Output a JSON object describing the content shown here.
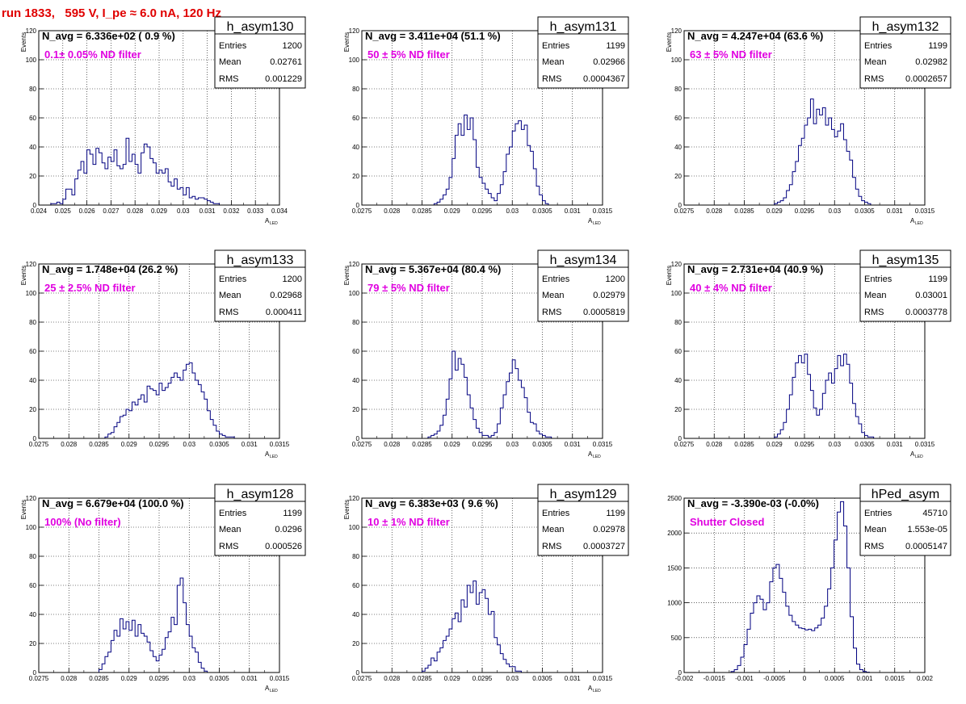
{
  "page": {
    "title": "run 1833,   595 V, I_pe ≈ 6.0 nA, 120 Hz"
  },
  "colors": {
    "title": "#e00000",
    "histogram_line": "#000080",
    "note": "#e000e0",
    "grid": "#000000",
    "frame": "#000000"
  },
  "chart_data": [
    {
      "type": "histogram",
      "name": "h_asym130",
      "ylabel": "Events",
      "xlabel_main": "A",
      "xlabel_sub": "LED",
      "xlim": [
        0.024,
        0.034
      ],
      "ylim": [
        0,
        120
      ],
      "xticks": [
        "0.024",
        "0.025",
        "0.026",
        "0.027",
        "0.028",
        "0.029",
        "0.03",
        "0.031",
        "0.032",
        "0.033",
        "0.034"
      ],
      "yticks": [
        "0",
        "20",
        "40",
        "60",
        "80",
        "100",
        "120"
      ],
      "grid": true,
      "navg": "N_avg = 6.336e+02 ( 0.9 %)",
      "note": "0.1± 0.05% ND filter",
      "stats": {
        "entries": "1200",
        "mean": "0.02761",
        "rms": "0.001229"
      },
      "bin_edges": [
        0.0245,
        0.033
      ],
      "counts": [
        1,
        1,
        2,
        1,
        4,
        11,
        11,
        7,
        18,
        24,
        30,
        22,
        38,
        35,
        28,
        39,
        36,
        29,
        25,
        33,
        30,
        38,
        27,
        25,
        28,
        46,
        30,
        35,
        28,
        22,
        36,
        42,
        40,
        32,
        29,
        22,
        24,
        22,
        25,
        16,
        13,
        18,
        11,
        12,
        7,
        12,
        5,
        6,
        4,
        5,
        5,
        4,
        3,
        2,
        1,
        1,
        0,
        0,
        0,
        0,
        0,
        0,
        0,
        0,
        0,
        0,
        0,
        0
      ]
    },
    {
      "type": "histogram",
      "name": "h_asym131",
      "ylabel": "Events",
      "xlabel_main": "A",
      "xlabel_sub": "LED",
      "xlim": [
        0.0275,
        0.0315
      ],
      "ylim": [
        0,
        120
      ],
      "xticks": [
        "0.0275",
        "0.028",
        "0.0285",
        "0.029",
        "0.0295",
        "0.03",
        "0.0305",
        "0.031",
        "0.0315"
      ],
      "yticks": [
        "0",
        "20",
        "40",
        "60",
        "80",
        "100",
        "120"
      ],
      "grid": true,
      "navg": "N_avg = 3.411e+04 (51.1 %)",
      "note": "50 ± 5% ND filter",
      "stats": {
        "entries": "1199",
        "mean": "0.02966",
        "rms": "0.0004367"
      },
      "bin_edges": [
        0.0287,
        0.0306
      ],
      "counts": [
        1,
        2,
        4,
        7,
        11,
        19,
        32,
        48,
        56,
        48,
        62,
        52,
        60,
        45,
        26,
        19,
        15,
        11,
        8,
        5,
        3,
        8,
        14,
        23,
        35,
        40,
        51,
        56,
        58,
        52,
        55,
        41,
        37,
        25,
        13,
        7,
        3,
        1
      ]
    },
    {
      "type": "histogram",
      "name": "h_asym132",
      "ylabel": "Events",
      "xlabel_main": "A",
      "xlabel_sub": "LED",
      "xlim": [
        0.0275,
        0.0315
      ],
      "ylim": [
        0,
        120
      ],
      "xticks": [
        "0.0275",
        "0.028",
        "0.0285",
        "0.029",
        "0.0295",
        "0.03",
        "0.0305",
        "0.031",
        "0.0315"
      ],
      "yticks": [
        "0",
        "20",
        "40",
        "60",
        "80",
        "100",
        "120"
      ],
      "grid": true,
      "navg": "N_avg = 4.247e+04 (63.6 %)",
      "note": "63 ± 5% ND filter",
      "stats": {
        "entries": "1199",
        "mean": "0.02982",
        "rms": "0.0002657"
      },
      "bin_edges": [
        0.029,
        0.0306
      ],
      "counts": [
        1,
        2,
        3,
        5,
        10,
        14,
        23,
        30,
        41,
        46,
        55,
        60,
        73,
        56,
        66,
        62,
        67,
        55,
        60,
        52,
        47,
        51,
        56,
        45,
        37,
        31,
        19,
        11,
        6,
        3,
        2,
        1
      ]
    },
    {
      "type": "histogram",
      "name": "h_asym133",
      "ylabel": "Events",
      "xlabel_main": "A",
      "xlabel_sub": "LED",
      "xlim": [
        0.0275,
        0.0315
      ],
      "ylim": [
        0,
        120
      ],
      "xticks": [
        "0.0275",
        "0.028",
        "0.0285",
        "0.029",
        "0.0295",
        "0.03",
        "0.0305",
        "0.031",
        "0.0315"
      ],
      "yticks": [
        "0",
        "20",
        "40",
        "60",
        "80",
        "100",
        "120"
      ],
      "grid": true,
      "navg": "N_avg = 1.748e+04 (26.2 %)",
      "note": "25 ± 2.5% ND filter",
      "stats": {
        "entries": "1200",
        "mean": "0.02968",
        "rms": "0.000411"
      },
      "bin_edges": [
        0.0286,
        0.031
      ],
      "counts": [
        1,
        3,
        4,
        8,
        11,
        15,
        16,
        20,
        19,
        25,
        23,
        27,
        30,
        25,
        36,
        34,
        33,
        30,
        38,
        33,
        35,
        38,
        42,
        45,
        42,
        40,
        47,
        51,
        52,
        45,
        40,
        37,
        32,
        27,
        19,
        13,
        9,
        5,
        3,
        2,
        1,
        1,
        1,
        0,
        0,
        0,
        0,
        0
      ]
    },
    {
      "type": "histogram",
      "name": "h_asym134",
      "ylabel": "Events",
      "xlabel_main": "A",
      "xlabel_sub": "LED",
      "xlim": [
        0.0275,
        0.0315
      ],
      "ylim": [
        0,
        120
      ],
      "xticks": [
        "0.0275",
        "0.028",
        "0.0285",
        "0.029",
        "0.0295",
        "0.03",
        "0.0305",
        "0.031",
        "0.0315"
      ],
      "yticks": [
        "0",
        "20",
        "40",
        "60",
        "80",
        "100",
        "120"
      ],
      "grid": true,
      "navg": "N_avg = 5.367e+04 (80.4 %)",
      "note": "79 ± 5% ND filter",
      "stats": {
        "entries": "1200",
        "mean": "0.02979",
        "rms": "0.0005819"
      },
      "bin_edges": [
        0.0286,
        0.031
      ],
      "counts": [
        1,
        2,
        3,
        5,
        9,
        16,
        27,
        41,
        60,
        47,
        55,
        51,
        42,
        30,
        21,
        13,
        7,
        4,
        2,
        2,
        1,
        2,
        4,
        10,
        21,
        30,
        39,
        45,
        54,
        48,
        40,
        35,
        28,
        18,
        11,
        10,
        5,
        3,
        2,
        1,
        1,
        0,
        0,
        0,
        0,
        0,
        0,
        0
      ]
    },
    {
      "type": "histogram",
      "name": "h_asym135",
      "ylabel": "Events",
      "xlabel_main": "A",
      "xlabel_sub": "LED",
      "xlim": [
        0.0275,
        0.0315
      ],
      "ylim": [
        0,
        120
      ],
      "xticks": [
        "0.0275",
        "0.028",
        "0.0285",
        "0.029",
        "0.0295",
        "0.03",
        "0.0305",
        "0.031",
        "0.0315"
      ],
      "yticks": [
        "0",
        "20",
        "40",
        "60",
        "80",
        "100",
        "120"
      ],
      "grid": true,
      "navg": "N_avg = 2.731e+04 (40.9 %)",
      "note": "40 ± 4% ND filter",
      "stats": {
        "entries": "1199",
        "mean": "0.03001",
        "rms": "0.0003778"
      },
      "bin_edges": [
        0.029,
        0.031
      ],
      "counts": [
        1,
        3,
        6,
        11,
        20,
        30,
        42,
        52,
        57,
        52,
        58,
        44,
        33,
        21,
        16,
        20,
        31,
        40,
        45,
        38,
        48,
        57,
        50,
        58,
        51,
        38,
        24,
        15,
        10,
        4,
        2,
        1,
        1,
        0,
        0,
        0,
        0,
        0,
        0,
        0
      ]
    },
    {
      "type": "histogram",
      "name": "h_asym128",
      "ylabel": "Events",
      "xlabel_main": "A",
      "xlabel_sub": "LED",
      "xlim": [
        0.0275,
        0.0315
      ],
      "ylim": [
        0,
        120
      ],
      "xticks": [
        "0.0275",
        "0.028",
        "0.0285",
        "0.029",
        "0.0295",
        "0.03",
        "0.0305",
        "0.031",
        "0.0315"
      ],
      "yticks": [
        "0",
        "20",
        "40",
        "60",
        "80",
        "100",
        "120"
      ],
      "grid": true,
      "navg": "N_avg = 6.679e+04 (100.0 %)",
      "note": "100% (No filter)",
      "stats": {
        "entries": "1199",
        "mean": "0.0296",
        "rms": "0.000526"
      },
      "bin_edges": [
        0.0285,
        0.031
      ],
      "counts": [
        2,
        6,
        11,
        14,
        22,
        29,
        25,
        37,
        30,
        35,
        29,
        36,
        25,
        33,
        27,
        25,
        21,
        15,
        11,
        8,
        12,
        16,
        24,
        28,
        38,
        33,
        60,
        65,
        48,
        33,
        25,
        17,
        14,
        7,
        3,
        1,
        0,
        0,
        0,
        0,
        0,
        0,
        0,
        0,
        0,
        0,
        0,
        0,
        0,
        0
      ]
    },
    {
      "type": "histogram",
      "name": "h_asym129",
      "ylabel": "Events",
      "xlabel_main": "A",
      "xlabel_sub": "LED",
      "xlim": [
        0.0275,
        0.0315
      ],
      "ylim": [
        0,
        120
      ],
      "xticks": [
        "0.0275",
        "0.028",
        "0.0285",
        "0.029",
        "0.0295",
        "0.03",
        "0.0305",
        "0.031",
        "0.0315"
      ],
      "yticks": [
        "0",
        "20",
        "40",
        "60",
        "80",
        "100",
        "120"
      ],
      "grid": true,
      "navg": "N_avg = 6.383e+03 ( 9.6 %)",
      "note": "10 ± 1% ND filter",
      "stats": {
        "entries": "1199",
        "mean": "0.02978",
        "rms": "0.0003727"
      },
      "bin_edges": [
        0.0285,
        0.031
      ],
      "counts": [
        1,
        3,
        5,
        10,
        8,
        14,
        17,
        22,
        25,
        30,
        37,
        41,
        35,
        50,
        45,
        60,
        55,
        63,
        47,
        55,
        57,
        51,
        40,
        42,
        24,
        19,
        13,
        9,
        6,
        4,
        4,
        1,
        1,
        0,
        0,
        0,
        0,
        0,
        0,
        0,
        0,
        0,
        0,
        0,
        0,
        0,
        0,
        0,
        0,
        0
      ]
    },
    {
      "type": "histogram",
      "name": "hPed_asym",
      "ylabel": "",
      "xlabel_main": "",
      "xlabel_sub": "",
      "xlim": [
        -0.002,
        0.002
      ],
      "ylim": [
        0,
        2500
      ],
      "xticks": [
        "-0.002",
        "-0.0015",
        "-0.001",
        "-0.0005",
        "0",
        "0.0005",
        "0.001",
        "0.0015",
        "0.002"
      ],
      "yticks": [
        "0",
        "500",
        "1000",
        "1500",
        "2000",
        "2500"
      ],
      "grid": true,
      "navg": "N_avg = -3.390e-03 (-0.0%)",
      "note": "Shutter Closed",
      "stats": {
        "entries": "45710",
        "mean": "1.553e-05",
        "rms": "0.0005147"
      },
      "bin_edges": [
        -0.00122,
        0.00108
      ],
      "counts": [
        15,
        40,
        100,
        220,
        400,
        620,
        850,
        1000,
        1100,
        1050,
        900,
        1000,
        1300,
        1500,
        1550,
        1350,
        1150,
        950,
        820,
        730,
        680,
        640,
        630,
        610,
        620,
        600,
        640,
        680,
        780,
        950,
        1200,
        1500,
        1900,
        2300,
        2450,
        2100,
        1500,
        800,
        350,
        120,
        40,
        15,
        5
      ]
    }
  ],
  "labels": {
    "entries": "Entries",
    "mean": "Mean",
    "rms": "RMS"
  }
}
